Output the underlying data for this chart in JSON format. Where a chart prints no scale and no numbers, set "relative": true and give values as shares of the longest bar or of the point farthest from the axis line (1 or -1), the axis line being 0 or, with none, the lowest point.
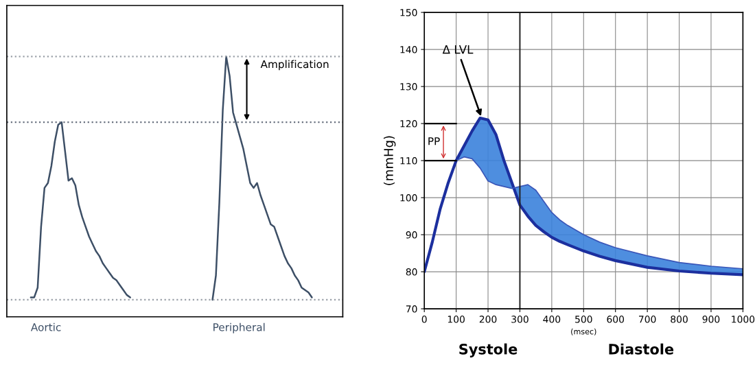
{
  "chart_data": [
    {
      "type": "line",
      "relative": true,
      "categories": [
        null,
        null,
        null,
        null,
        null,
        null,
        null,
        null,
        null,
        null,
        null,
        null,
        null,
        null,
        null,
        null,
        null,
        null,
        null,
        null,
        null,
        null,
        null,
        null,
        null,
        null,
        null,
        null,
        null,
        null,
        null,
        null,
        null,
        null,
        null,
        null,
        null,
        null,
        null,
        null,
        null,
        null,
        null,
        null,
        null,
        null,
        null,
        null,
        null,
        null,
        null,
        null,
        null,
        null,
        null,
        null,
        null,
        null,
        null,
        null,
        null,
        null,
        null,
        null,
        null,
        null,
        null,
        null,
        null,
        null,
        null,
        null,
        null,
        null,
        null,
        null,
        null,
        null,
        null,
        null,
        null,
        null,
        null
      ],
      "series": [
        {
          "name": "Aortic",
          "color": "#3d4f66",
          "values": [
            0.01,
            0.01,
            0.05,
            0.3,
            0.46,
            0.48,
            0.55,
            0.65,
            0.72,
            0.73,
            0.61,
            0.49,
            0.5,
            0.47,
            0.39,
            0.34,
            0.3,
            0.26,
            0.23,
            0.2,
            0.18,
            0.15,
            0.13,
            0.11,
            0.09,
            0.08,
            0.06,
            0.04,
            0.02,
            0.01,
            null,
            null,
            null,
            null,
            null,
            null,
            null,
            null,
            null,
            null,
            null,
            null,
            null,
            null,
            null,
            null,
            null,
            null,
            null,
            null,
            null,
            null,
            null,
            null,
            null,
            null,
            null,
            null,
            null,
            null,
            null,
            null,
            null,
            null,
            null,
            null,
            null,
            null,
            null,
            null,
            null,
            null,
            null,
            null,
            null,
            null,
            null,
            null,
            null,
            null,
            null,
            null,
            null
          ]
        },
        {
          "name": "Peripheral",
          "color": "#3d4f66",
          "values": [
            null,
            null,
            null,
            null,
            null,
            null,
            null,
            null,
            null,
            null,
            null,
            null,
            null,
            null,
            null,
            null,
            null,
            null,
            null,
            null,
            null,
            null,
            null,
            null,
            null,
            null,
            null,
            null,
            null,
            null,
            null,
            null,
            null,
            null,
            null,
            null,
            null,
            null,
            null,
            null,
            null,
            null,
            null,
            null,
            null,
            null,
            null,
            null,
            null,
            null,
            null,
            null,
            null,
            0.0,
            0.1,
            0.4,
            0.78,
            1.0,
            0.92,
            0.77,
            0.72,
            0.67,
            0.62,
            0.55,
            0.48,
            0.46,
            0.48,
            0.43,
            0.39,
            0.35,
            0.31,
            0.3,
            0.26,
            0.22,
            0.18,
            0.15,
            0.13,
            0.1,
            0.08,
            0.05,
            0.04,
            0.03,
            0.01
          ]
        }
      ],
      "annotations": [
        "Amplification"
      ],
      "ref_lines": [
        {
          "axis": "y",
          "value": 0,
          "color": "#9aa0a8",
          "line_style": "dotted"
        },
        {
          "axis": "y",
          "value": 0.73,
          "color": "#6a7280",
          "line_style": "dotted"
        },
        {
          "axis": "y",
          "value": 1.0,
          "color": "#9aa0a8",
          "line_style": "dotted"
        }
      ],
      "grid": false
    },
    {
      "type": "line",
      "x": [
        0,
        25,
        50,
        75,
        100,
        125,
        150,
        175,
        200,
        225,
        250,
        275,
        300,
        325,
        350,
        375,
        400,
        425,
        450,
        500,
        550,
        600,
        700,
        800,
        900,
        1000
      ],
      "series": [
        {
          "color": "#1c2f9e",
          "values": [
            80,
            88,
            97,
            104,
            110,
            114,
            118,
            121.5,
            121,
            117,
            110,
            104,
            98,
            95,
            92.5,
            90.8,
            89.3,
            88.2,
            87.3,
            85.6,
            84.2,
            83,
            81.2,
            80.2,
            79.6,
            79.2
          ]
        },
        {
          "color": "#3a56b8",
          "values": [
            null,
            null,
            null,
            null,
            110,
            111,
            110.5,
            108,
            104.5,
            103.5,
            103,
            102.5,
            103,
            103.5,
            102,
            99,
            96,
            94,
            92.5,
            90,
            88,
            86.5,
            84.3,
            82.5,
            81.5,
            80.8
          ],
          "lower": [
            null,
            null,
            null,
            null,
            110,
            114,
            118,
            121.5,
            121,
            117,
            110,
            104,
            98,
            95,
            92.5,
            90.8,
            89.3,
            88.2,
            87.3,
            85.6,
            84.2,
            83,
            81.2,
            80.2,
            79.6,
            79.2
          ],
          "upper": [
            null,
            null,
            null,
            null,
            110,
            111,
            110.5,
            108,
            104.5,
            103.5,
            103,
            102.5,
            103,
            103.5,
            102,
            99,
            96,
            94,
            92.5,
            90,
            88,
            86.5,
            84.3,
            82.5,
            81.5,
            80.8
          ]
        }
      ],
      "xlim": [
        0,
        1000
      ],
      "ylim": [
        70,
        150
      ],
      "xticks": [
        0,
        100,
        200,
        300,
        400,
        500,
        600,
        700,
        800,
        900,
        1000
      ],
      "yticks": [
        70,
        80,
        90,
        100,
        110,
        120,
        130,
        140,
        150
      ],
      "xlabel": "(msec)",
      "ylabel": "(mmHg)",
      "annotations": [
        {
          "text": "Δ LVL",
          "x": 180,
          "y": 121.5
        },
        "Systole",
        "Diastole",
        "PP"
      ],
      "ref_lines": [
        {
          "axis": "x",
          "value": 300,
          "color": "#222222"
        }
      ],
      "grid": true
    }
  ]
}
